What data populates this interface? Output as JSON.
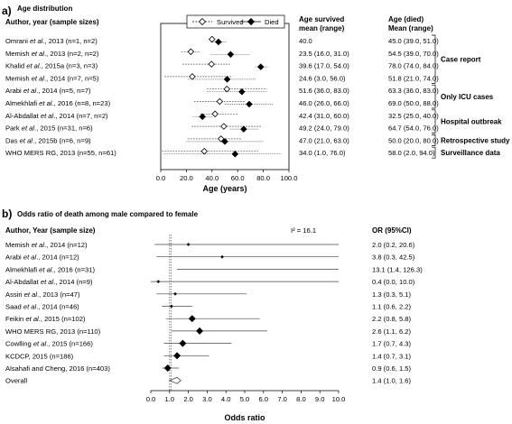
{
  "chart_data": [
    {
      "panel_letter": "a)",
      "title": "Age distribution",
      "type": "scatter",
      "col_author": "Author, year (sample sizes)",
      "col_survived": "Age survived mean (range)",
      "col_died": "Age (died) Mean (range)",
      "legend": {
        "survived": "Survived",
        "died": "Died",
        "placement": "top-center"
      },
      "xlabel": "Age (years)",
      "xlim": [
        0,
        100
      ],
      "xticks": [
        "0.0",
        "20.0",
        "40.0",
        "60.0",
        "80.0",
        "100.0"
      ],
      "rows": [
        {
          "p1": "Omrani ",
          "it": "et al",
          "p2": "., 2013 (n=1, n=2)",
          "s_text": "40.0",
          "d_text": "45.0 (39.0, 51.0)",
          "s_mean": 40.0,
          "s_min": 40.0,
          "s_max": 40.0,
          "d_mean": 45.0,
          "d_min": 39.0,
          "d_max": 51.0
        },
        {
          "p1": "Memish ",
          "it": "et al",
          "p2": "., 2013 (n=2, n=2)",
          "s_text": "23.5 (16.0, 31.0)",
          "d_text": "54.5 (39.0, 70.0)",
          "s_mean": 23.5,
          "s_min": 16.0,
          "s_max": 31.0,
          "d_mean": 54.5,
          "d_min": 39.0,
          "d_max": 70.0
        },
        {
          "p1": "Khalid ",
          "it": "et al",
          "p2": "., 2015a (n=3, n=3)",
          "s_text": "39.6 (17.0, 54.0)",
          "d_text": "78.0 (74.0, 84.0)",
          "s_mean": 39.6,
          "s_min": 17.0,
          "s_max": 54.0,
          "d_mean": 78.0,
          "d_min": 74.0,
          "d_max": 84.0
        },
        {
          "p1": "Memish ",
          "it": "et al",
          "p2": "., 2014 (n=7, n=5)",
          "s_text": "24.6 (3.0, 56.0)",
          "d_text": "51.8 (21.0, 74.0)",
          "s_mean": 24.6,
          "s_min": 3.0,
          "s_max": 56.0,
          "d_mean": 51.8,
          "d_min": 21.0,
          "d_max": 74.0
        },
        {
          "p1": "Arabi ",
          "it": "et al",
          "p2": "., 2014 (n=5, n=7)",
          "s_text": "51.6 (36.0, 83.0)",
          "d_text": "63.3 (36.0, 83.0)",
          "s_mean": 51.6,
          "s_min": 36.0,
          "s_max": 83.0,
          "d_mean": 63.3,
          "d_min": 36.0,
          "d_max": 83.0
        },
        {
          "p1": "Almekhlafi ",
          "it": "et al",
          "p2": "., 2016 (n=8, n=23)",
          "s_text": "46.0 (26.0, 66.0)",
          "d_text": "69.0 (50.0, 88.0)",
          "s_mean": 46.0,
          "s_min": 26.0,
          "s_max": 66.0,
          "d_mean": 69.0,
          "d_min": 50.0,
          "d_max": 88.0
        },
        {
          "p1": "Al-Abdallat ",
          "it": "et al",
          "p2": "., 2014 (n=7, n=2)",
          "s_text": "42.4 (31.0, 60.0)",
          "d_text": "32.5 (25.0, 40.0)",
          "s_mean": 42.4,
          "s_min": 31.0,
          "s_max": 60.0,
          "d_mean": 32.5,
          "d_min": 25.0,
          "d_max": 40.0
        },
        {
          "p1": "Park ",
          "it": "et al",
          "p2": "., 2015 (n=31, n=6)",
          "s_text": "49.2 (24.0, 79.0)",
          "d_text": "64.7 (54.0, 76.0)",
          "s_mean": 49.2,
          "s_min": 24.0,
          "s_max": 79.0,
          "d_mean": 64.7,
          "d_min": 54.0,
          "d_max": 76.0
        },
        {
          "p1": "Das ",
          "it": "et al",
          "p2": "., 2015b (n=6, n=9)",
          "s_text": "47.0 (21.0, 63.0)",
          "d_text": "50.0 (20.0, 80.0)",
          "s_mean": 47.0,
          "s_min": 21.0,
          "s_max": 63.0,
          "d_mean": 50.0,
          "d_min": 20.0,
          "d_max": 80.0
        },
        {
          "p1": "WHO MERS RG, 2013 (n=55, n=61)",
          "it": "",
          "p2": "",
          "s_text": "34.0 (1.0, 76.0)",
          "d_text": "58.0 (2.0, 94.0)",
          "s_mean": 34.0,
          "s_min": 1.0,
          "s_max": 76.0,
          "d_mean": 58.0,
          "d_min": 2.0,
          "d_max": 94.0
        }
      ],
      "groups": [
        {
          "label": "Case report",
          "from": 0,
          "to": 3
        },
        {
          "label": "Only ICU cases",
          "from": 4,
          "to": 5
        },
        {
          "label": "Hospital outbreak",
          "from": 6,
          "to": 7
        },
        {
          "label": "Retrospective study",
          "from": 8,
          "to": 8
        },
        {
          "label": "Surveillance data",
          "from": 9,
          "to": 9
        }
      ]
    },
    {
      "panel_letter": "b)",
      "title": "Odds ratio of death among male compared to female",
      "type": "scatter",
      "col_author": "Author,  Year (sample size)",
      "col_or": "OR (95%CI)",
      "i2_label": "I² = 16.1",
      "xlabel": "Odds ratio",
      "xlim": [
        0,
        10
      ],
      "xticks": [
        "0.0",
        "1.0",
        "2.0",
        "3.0",
        "4.0",
        "5.0",
        "6.0",
        "7.0",
        "8.0",
        "9.0",
        "10.0"
      ],
      "rows": [
        {
          "p1": "Memish ",
          "it": "et al",
          "p2": "., 2014 (n=12)",
          "or_text": "2.0 (0.2, 20.6)",
          "or": 2.0,
          "lo": 0.2,
          "hi": 20.6
        },
        {
          "p1": "Arabi ",
          "it": "et al",
          "p2": "., 2014 (n=12)",
          "or_text": "3.8 (0.3, 42.5)",
          "or": 3.8,
          "lo": 0.3,
          "hi": 42.5
        },
        {
          "p1": "Almekhlafi ",
          "it": "et al",
          "p2": "., 2016 (n=31)",
          "or_text": "13.1 (1.4, 126.3)",
          "or": 13.1,
          "lo": 1.4,
          "hi": 126.3
        },
        {
          "p1": "Al-Abdallat ",
          "it": "et al",
          "p2": "., 2014 (n=9)",
          "or_text": "0.4 (0.0, 10.0)",
          "or": 0.4,
          "lo": 0.0,
          "hi": 10.0
        },
        {
          "p1": "Assiri ",
          "it": "et al",
          "p2": "., 2013 (n=47)",
          "or_text": "1.3 (0.3, 5.1)",
          "or": 1.3,
          "lo": 0.3,
          "hi": 5.1
        },
        {
          "p1": "Saad ",
          "it": "et al",
          "p2": "., 2014 (n=46)",
          "or_text": "1.1 (0.6, 2.2)",
          "or": 1.1,
          "lo": 0.6,
          "hi": 2.2
        },
        {
          "p1": "Feikin ",
          "it": "et al",
          "p2": "., 2015 (n=102)",
          "or_text": "2.2 (0.8, 5.8)",
          "or": 2.2,
          "lo": 0.8,
          "hi": 5.8
        },
        {
          "p1": "WHO MERS RG, 2013 (n=110)",
          "it": "",
          "p2": "",
          "or_text": "2.6 (1.1, 6.2)",
          "or": 2.6,
          "lo": 1.1,
          "hi": 6.2
        },
        {
          "p1": "Cowlling ",
          "it": "et al",
          "p2": "., 2015 (n=166)",
          "or_text": "1.7 (0.7, 4.3)",
          "or": 1.7,
          "lo": 0.7,
          "hi": 4.3
        },
        {
          "p1": "KCDCP, 2015 (n=186)",
          "it": "",
          "p2": "",
          "or_text": "1.4 (0.7, 3.1)",
          "or": 1.4,
          "lo": 0.7,
          "hi": 3.1
        },
        {
          "p1": "Alsahafi and Cheng, 2016 (n=403)",
          "it": "",
          "p2": "",
          "or_text": "0.9 (0.6, 1.5)",
          "or": 0.9,
          "lo": 0.6,
          "hi": 1.5
        }
      ],
      "overall": {
        "label": "Overall",
        "or_text": "1.4 (1.0, 1.6)",
        "or": 1.4,
        "lo": 1.0,
        "hi": 1.6
      }
    }
  ]
}
